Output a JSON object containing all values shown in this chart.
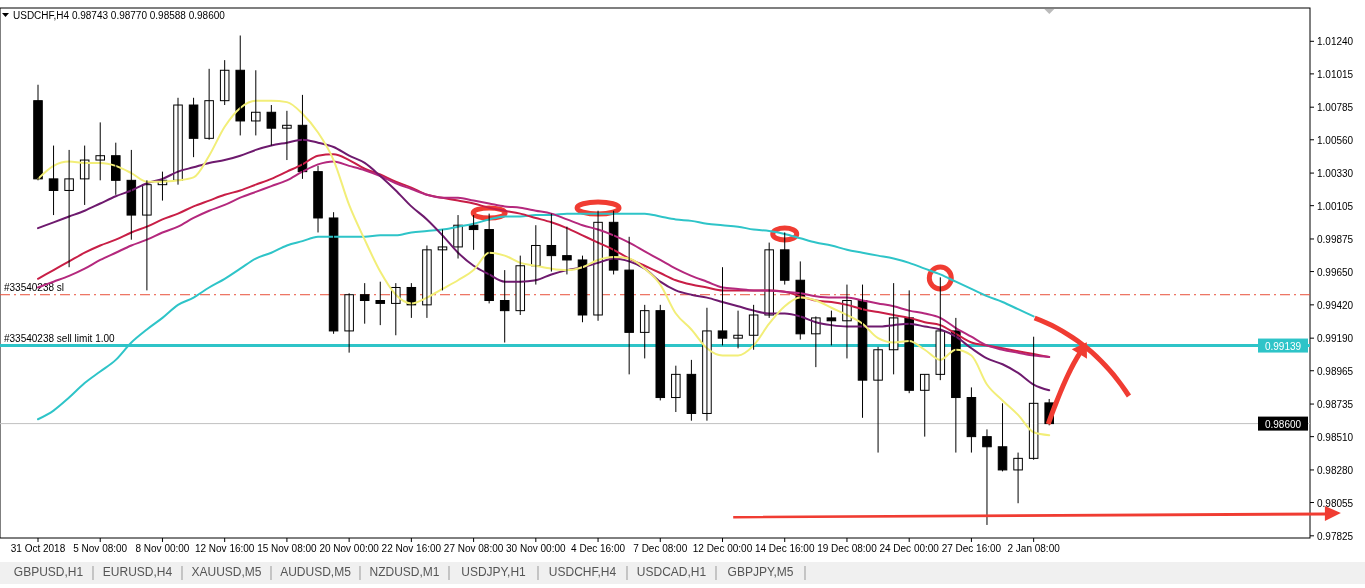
{
  "chart_data": {
    "type": "candlestick",
    "title": "USDCHF,H4  0.98743 0.98770 0.98588 0.98600",
    "categories": [
      "31 Oct 2018",
      null,
      null,
      null,
      "5 Nov 08:00",
      null,
      null,
      null,
      "8 Nov 00:00",
      null,
      null,
      null,
      "12 Nov 16:00",
      null,
      null,
      null,
      "15 Nov 08:00",
      null,
      null,
      null,
      "20 Nov 00:00",
      null,
      null,
      null,
      "22 Nov 16:00",
      null,
      null,
      null,
      "27 Nov 08:00",
      null,
      null,
      null,
      "30 Nov 00:00",
      null,
      null,
      null,
      "4 Dec 16:00",
      null,
      null,
      null,
      "7 Dec 08:00",
      null,
      null,
      null,
      "12 Dec 00:00",
      null,
      null,
      null,
      "14 Dec 16:00",
      null,
      null,
      null,
      "19 Dec 08:00",
      null,
      null,
      null,
      "24 Dec 00:00",
      null,
      null,
      null,
      "27 Dec 16:00",
      null,
      null,
      null,
      "2 Jan 08:00",
      null
    ],
    "ohlc": [
      [
        1.0083,
        1.0094,
        1.0028,
        1.0029
      ],
      [
        1.0029,
        1.0052,
        1.0004,
        1.0021
      ],
      [
        1.0021,
        1.0049,
        0.9968,
        1.0029
      ],
      [
        1.0029,
        1.0052,
        1.0011,
        1.0042
      ],
      [
        1.0042,
        1.0068,
        1.0028,
        1.0045
      ],
      [
        1.0045,
        1.0054,
        1.0018,
        1.0028
      ],
      [
        1.0028,
        1.0049,
        0.9987,
        1.0004
      ],
      [
        1.0004,
        1.0028,
        0.9952,
        1.0025
      ],
      [
        1.0025,
        1.0034,
        1.0014,
        1.0028
      ],
      [
        1.0028,
        1.0085,
        1.0025,
        1.008
      ],
      [
        1.008,
        1.0085,
        1.0044,
        1.0057
      ],
      [
        1.0057,
        1.0105,
        1.0056,
        1.0083
      ],
      [
        1.0083,
        1.0111,
        1.008,
        1.0104
      ],
      [
        1.0104,
        1.0128,
        1.0059,
        1.0069
      ],
      [
        1.0069,
        1.0104,
        1.0059,
        1.0075
      ],
      [
        1.0075,
        1.008,
        1.0052,
        1.0064
      ],
      [
        1.0064,
        1.0076,
        1.0042,
        1.0066
      ],
      [
        1.0066,
        1.0087,
        1.0029,
        1.0034
      ],
      [
        1.0034,
        1.0038,
        0.9992,
        1.0002
      ],
      [
        1.0002,
        1.0006,
        0.9922,
        0.9924
      ],
      [
        0.9924,
        0.995,
        0.9909,
        0.9949
      ],
      [
        0.9949,
        0.9957,
        0.9929,
        0.9945
      ],
      [
        0.9945,
        0.9958,
        0.9928,
        0.9943
      ],
      [
        0.9943,
        0.9957,
        0.9921,
        0.9954
      ],
      [
        0.9954,
        0.9957,
        0.9933,
        0.9942
      ],
      [
        0.9942,
        0.9983,
        0.9933,
        0.998
      ],
      [
        0.998,
        0.9994,
        0.9952,
        0.9982
      ],
      [
        0.9982,
        1.0004,
        0.9974,
        0.9997
      ],
      [
        0.9997,
        1.0004,
        0.998,
        0.9994
      ],
      [
        0.9994,
        1.0005,
        0.9943,
        0.9945
      ],
      [
        0.9945,
        0.9966,
        0.9916,
        0.9938
      ],
      [
        0.9938,
        0.9976,
        0.9935,
        0.9969
      ],
      [
        0.9969,
        0.9997,
        0.9956,
        0.9983
      ],
      [
        0.9983,
        1.0005,
        0.9965,
        0.9976
      ],
      [
        0.9976,
        0.9996,
        0.9963,
        0.9973
      ],
      [
        0.9973,
        0.9976,
        0.993,
        0.9935
      ],
      [
        0.9935,
        1.0007,
        0.9931,
        0.9999
      ],
      [
        0.9999,
        1.0007,
        0.9963,
        0.9966
      ],
      [
        0.9966,
        0.9989,
        0.9894,
        0.9923
      ],
      [
        0.9923,
        0.9942,
        0.9905,
        0.9938
      ],
      [
        0.9938,
        0.9942,
        0.9876,
        0.9878
      ],
      [
        0.9878,
        0.99,
        0.9868,
        0.9894
      ],
      [
        0.9894,
        0.9904,
        0.9862,
        0.9867
      ],
      [
        0.9867,
        0.994,
        0.9862,
        0.9924
      ],
      [
        0.9924,
        0.9968,
        0.9914,
        0.9919
      ],
      [
        0.9919,
        0.9938,
        0.9912,
        0.9921
      ],
      [
        0.9921,
        0.9942,
        0.9911,
        0.9935
      ],
      [
        0.9935,
        0.9985,
        0.9933,
        0.998
      ],
      [
        0.998,
        0.9992,
        0.9956,
        0.9959
      ],
      [
        0.9959,
        0.9972,
        0.9918,
        0.9922
      ],
      [
        0.9922,
        0.9934,
        0.9899,
        0.9933
      ],
      [
        0.9933,
        0.9938,
        0.9914,
        0.9931
      ],
      [
        0.9931,
        0.9956,
        0.9905,
        0.9945
      ],
      [
        0.9945,
        0.9956,
        0.9864,
        0.989
      ],
      [
        0.989,
        0.9913,
        0.984,
        0.9911
      ],
      [
        0.9911,
        0.9957,
        0.9894,
        0.9933
      ],
      [
        0.9933,
        0.9952,
        0.9881,
        0.9883
      ],
      [
        0.9883,
        0.9894,
        0.9851,
        0.9894
      ],
      [
        0.9894,
        0.9961,
        0.989,
        0.9924
      ],
      [
        0.9924,
        0.9933,
        0.984,
        0.9878
      ],
      [
        0.9878,
        0.9885,
        0.984,
        0.9851
      ],
      [
        0.9851,
        0.9856,
        0.979,
        0.9844
      ],
      [
        0.9844,
        0.9874,
        0.9827,
        0.9828
      ],
      [
        0.9828,
        0.984,
        0.9805,
        0.9836
      ],
      [
        0.9836,
        0.992,
        0.9835,
        0.9874
      ],
      [
        0.98743,
        0.9877,
        0.98588,
        0.986
      ]
    ],
    "series": [
      {
        "type": "line",
        "color": "#2ec4c8",
        "values": [
          0.9863,
          0.9869,
          0.9878,
          0.9888,
          0.9896,
          0.9904,
          0.9916,
          0.9925,
          0.9933,
          0.9942,
          0.9947,
          0.9954,
          0.996,
          0.9967,
          0.9974,
          0.9978,
          0.9983,
          0.9986,
          0.9989,
          0.9989,
          0.9989,
          0.9989,
          0.999,
          0.999,
          0.9992,
          0.9993,
          0.9994,
          0.9996,
          0.9998,
          1.0001,
          1.0003,
          1.0003,
          1.0004,
          1.0004,
          1.0005,
          1.0005,
          1.0005,
          1.0005,
          1.0005,
          1.0005,
          1.0003,
          1.0001,
          1.0,
          0.9998,
          0.9997,
          0.9996,
          0.9994,
          0.9993,
          0.9991,
          0.9988,
          0.9985,
          0.9983,
          0.998,
          0.9978,
          0.9976,
          0.9974,
          0.9971,
          0.9967,
          0.9963,
          0.9958,
          0.9953,
          0.9948,
          0.9944,
          0.9939,
          0.9934,
          null
        ]
      },
      {
        "type": "line",
        "color": "#c81e46",
        "values": [
          0.996,
          0.9966,
          0.9972,
          0.9978,
          0.9983,
          0.9987,
          0.9992,
          0.9996,
          1.0001,
          1.0005,
          1.001,
          1.0014,
          1.0018,
          1.0021,
          1.0025,
          1.0029,
          1.0034,
          1.0039,
          1.0045,
          1.0046,
          1.0042,
          1.0036,
          1.0032,
          1.0027,
          1.0023,
          1.0018,
          1.0016,
          1.0014,
          1.0012,
          1.0009,
          1.0007,
          1.0005,
          1.0002,
          0.9999,
          0.9995,
          0.999,
          0.9985,
          0.998,
          0.9974,
          0.9969,
          0.9964,
          0.9959,
          0.9956,
          0.9954,
          0.9952,
          0.9952,
          0.9952,
          0.9952,
          0.9951,
          0.9948,
          0.9945,
          0.9944,
          0.9942,
          0.9939,
          0.9937,
          0.9935,
          0.9933,
          0.993,
          0.9928,
          0.9922,
          0.9916,
          0.9914,
          0.9912,
          0.991,
          0.9908,
          0.9906
        ]
      },
      {
        "type": "line",
        "color": "#b4287d",
        "values": [
          0.9954,
          0.9958,
          0.9962,
          0.9967,
          0.9973,
          0.9978,
          0.9983,
          0.9987,
          0.9992,
          0.9996,
          1.0002,
          1.0007,
          1.0011,
          1.0016,
          1.002,
          1.0024,
          1.0028,
          1.0034,
          1.0039,
          1.0041,
          1.0038,
          1.0035,
          1.0031,
          1.0026,
          1.0022,
          1.0018,
          1.0016,
          1.0016,
          1.0014,
          1.0012,
          1.001,
          1.0009,
          1.0007,
          1.0005,
          1.0001,
          0.9997,
          0.9994,
          0.999,
          0.9985,
          0.9979,
          0.9973,
          0.9967,
          0.9962,
          0.9958,
          0.9954,
          0.9953,
          0.9952,
          0.9952,
          0.9951,
          0.995,
          0.9948,
          0.9947,
          0.9947,
          0.9945,
          0.9943,
          0.9941,
          0.9938,
          0.9936,
          0.9933,
          0.9926,
          0.992,
          0.9914,
          0.9911,
          0.9909,
          0.9907,
          0.9906
        ]
      },
      {
        "type": "line",
        "color": "#6e1a6e",
        "values": [
          0.9995,
          0.9999,
          1.0003,
          1.0007,
          1.0012,
          1.0017,
          1.0021,
          1.0026,
          1.0029,
          1.0034,
          1.0037,
          1.004,
          1.0042,
          1.0045,
          1.0049,
          1.0052,
          1.0054,
          1.0056,
          1.0054,
          1.0051,
          1.0045,
          1.004,
          1.0031,
          1.0021,
          1.001,
          1.0001,
          0.999,
          0.9978,
          0.9969,
          0.9963,
          0.9958,
          0.9958,
          0.9959,
          0.9963,
          0.9966,
          0.9968,
          0.9971,
          0.9974,
          0.9972,
          0.9967,
          0.9958,
          0.9952,
          0.9949,
          0.9947,
          0.9944,
          0.9941,
          0.9938,
          0.9936,
          0.9936,
          0.9934,
          0.993,
          0.9928,
          0.9927,
          0.9927,
          0.9927,
          0.9928,
          0.9929,
          0.9927,
          0.9925,
          0.992,
          0.9912,
          0.9905,
          0.9901,
          0.9895,
          0.9887,
          0.9883
        ]
      },
      {
        "type": "line",
        "color": "#f2ee78",
        "values": [
          1.0029,
          1.0038,
          1.0041,
          1.004,
          1.004,
          1.0038,
          1.0033,
          1.0027,
          1.0027,
          1.0028,
          1.003,
          1.0045,
          1.0065,
          1.0078,
          1.0083,
          1.0083,
          1.0082,
          1.0074,
          1.0061,
          1.0042,
          1.0011,
          0.9987,
          0.9965,
          0.9949,
          0.9943,
          0.9947,
          0.9953,
          0.9959,
          0.9966,
          0.9978,
          0.9976,
          0.9971,
          0.9969,
          0.9967,
          0.9966,
          0.9968,
          0.9973,
          0.9975,
          0.9974,
          0.9967,
          0.9956,
          0.9936,
          0.9925,
          0.9912,
          0.9907,
          0.9907,
          0.9914,
          0.9929,
          0.9941,
          0.9947,
          0.9945,
          0.994,
          0.9935,
          0.9929,
          0.9919,
          0.9916,
          0.9917,
          0.9911,
          0.9904,
          0.9911,
          0.9907,
          0.9887,
          0.9876,
          0.9866,
          0.9854,
          0.9852
        ]
      }
    ],
    "ylim": [
      0.9781,
      1.0147
    ],
    "yticks": [
      {
        "value": 1.0124,
        "label": "1.01240"
      },
      {
        "value": 1.01015,
        "label": "1.01015"
      },
      {
        "value": 1.00785,
        "label": "1.00785"
      },
      {
        "value": 1.0056,
        "label": "1.00560"
      },
      {
        "value": 1.0033,
        "label": "1.00330"
      },
      {
        "value": 1.00105,
        "label": "1.00105"
      },
      {
        "value": 0.99875,
        "label": "0.99875"
      },
      {
        "value": 0.9965,
        "label": "0.99650"
      },
      {
        "value": 0.9942,
        "label": "0.99420"
      },
      {
        "value": 0.9919,
        "label": "0.99190"
      },
      {
        "value": 0.98965,
        "label": "0.98965"
      },
      {
        "value": 0.98735,
        "label": "0.98735"
      },
      {
        "value": 0.9851,
        "label": "0.98510"
      },
      {
        "value": 0.9828,
        "label": "0.98280"
      },
      {
        "value": 0.98055,
        "label": "0.98055"
      },
      {
        "value": 0.97825,
        "label": "0.97825"
      }
    ],
    "ref_lines": [
      {
        "axis": "y",
        "value": 0.9949,
        "label": "#33540238 sl",
        "color": "#e8503a",
        "line_style": "dashed"
      },
      {
        "axis": "y",
        "value": 0.99139,
        "label": "#33540238 sell limit 1.00",
        "color": "#2ec4c8"
      },
      {
        "axis": "y",
        "value": 0.986,
        "color": "#c0c0c0"
      }
    ],
    "annotations": [
      {
        "text": "0.99139",
        "y": 0.99139
      },
      {
        "text": "0.98600",
        "y": 0.986
      },
      "GBPUSD,H1",
      "EURUSD,H4",
      "XAUUSD,M5",
      "AUDUSD,M5",
      "NZDUSD,M1",
      "USDJPY,H1",
      "USDCHF,H4",
      "USDCAD,H1",
      "GBPJPY,M5"
    ],
    "grid": false
  }
}
